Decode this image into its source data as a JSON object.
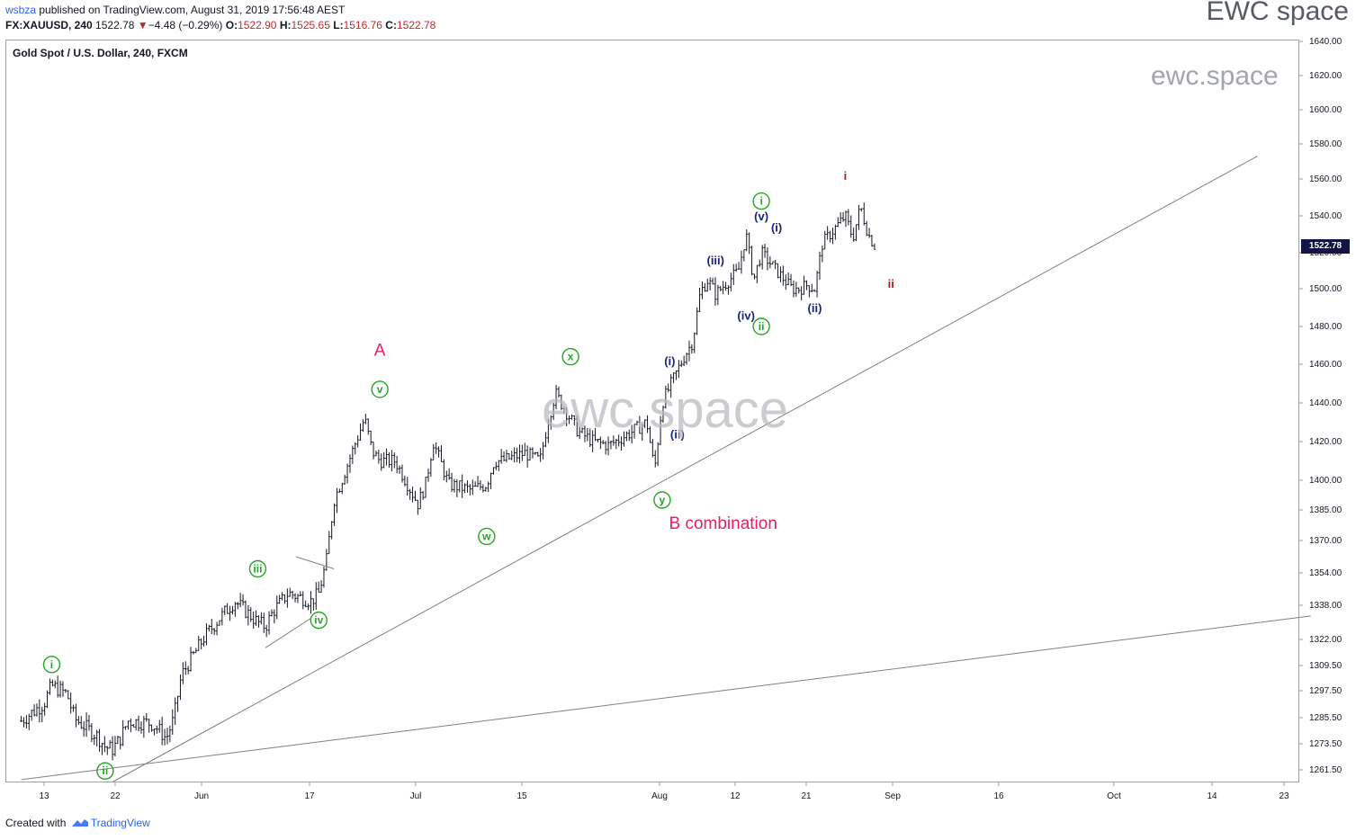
{
  "header": {
    "user": "wsbza",
    "published": "published on TradingView.com, August 31, 2019 17:56:48 AEST",
    "symbol": "FX:XAUUSD, 240",
    "last": "1522.78",
    "change": "−4.48 (−0.29%)",
    "o_label": "O:",
    "o_value": "1522.90",
    "h_label": "H:",
    "h_value": "1525.65",
    "l_label": "L:",
    "l_value": "1516.76",
    "c_label": "C:",
    "c_value": "1522.78"
  },
  "brand": "EWC space",
  "watermark_top": "ewc.space",
  "watermark_center": "ewc.space",
  "instrument": "Gold Spot / U.S. Dollar, 240, FXCM",
  "footer": {
    "created": "Created with",
    "tradingview": "TradingView"
  },
  "colors": {
    "green": "#22a722",
    "blue": "#1a237e",
    "red": "#e91e63",
    "darkred": "#b71c1c",
    "bar": "#131722",
    "trend": "#808080",
    "pricebox": "#131345"
  },
  "chart_data": {
    "type": "ohlc-bar",
    "title": "Gold Spot / U.S. Dollar, 240, FXCM",
    "last_price": "1522.78",
    "y_ticks": [
      "1640.00",
      "1620.00",
      "1600.00",
      "1580.00",
      "1560.00",
      "1540.00",
      "1520.00",
      "1500.00",
      "1480.00",
      "1460.00",
      "1440.00",
      "1420.00",
      "1400.00",
      "1385.00",
      "1370.00",
      "1354.00",
      "1338.00",
      "1322.00",
      "1309.50",
      "1297.50",
      "1285.50",
      "1273.50",
      "1261.50"
    ],
    "x_ticks": [
      "13",
      "22",
      "Jun",
      "17",
      "Jul",
      "15",
      "Aug",
      "12",
      "21",
      "Sep",
      "16",
      "Oct",
      "14",
      "23"
    ],
    "path": [
      [
        "2019-05-10",
        1284
      ],
      [
        "2019-05-13",
        1292
      ],
      [
        "2019-05-14",
        1300
      ],
      [
        "2019-05-16",
        1296
      ],
      [
        "2019-05-17",
        1285
      ],
      [
        "2019-05-20",
        1277
      ],
      [
        "2019-05-21",
        1272
      ],
      [
        "2019-05-22",
        1271
      ],
      [
        "2019-05-23",
        1276
      ],
      [
        "2019-05-24",
        1284
      ],
      [
        "2019-05-27",
        1283
      ],
      [
        "2019-05-28",
        1280
      ],
      [
        "2019-05-29",
        1276
      ],
      [
        "2019-05-30",
        1285
      ],
      [
        "2019-05-31",
        1305
      ],
      [
        "2019-06-03",
        1323
      ],
      [
        "2019-06-05",
        1332
      ],
      [
        "2019-06-07",
        1340
      ],
      [
        "2019-06-10",
        1330
      ],
      [
        "2019-06-11",
        1328
      ],
      [
        "2019-06-12",
        1335
      ],
      [
        "2019-06-14",
        1344
      ],
      [
        "2019-06-17",
        1340
      ],
      [
        "2019-06-18",
        1344
      ],
      [
        "2019-06-19",
        1360
      ],
      [
        "2019-06-20",
        1390
      ],
      [
        "2019-06-21",
        1400
      ],
      [
        "2019-06-24",
        1432
      ],
      [
        "2019-06-25",
        1415
      ],
      [
        "2019-06-26",
        1410
      ],
      [
        "2019-06-28",
        1410
      ],
      [
        "2019-07-01",
        1388
      ],
      [
        "2019-07-02",
        1398
      ],
      [
        "2019-07-03",
        1420
      ],
      [
        "2019-07-05",
        1398
      ],
      [
        "2019-07-08",
        1395
      ],
      [
        "2019-07-10",
        1398
      ],
      [
        "2019-07-11",
        1410
      ],
      [
        "2019-07-12",
        1410
      ],
      [
        "2019-07-15",
        1414
      ],
      [
        "2019-07-17",
        1410
      ],
      [
        "2019-07-18",
        1430
      ],
      [
        "2019-07-19",
        1445
      ],
      [
        "2019-07-22",
        1425
      ],
      [
        "2019-07-24",
        1420
      ],
      [
        "2019-07-26",
        1418
      ],
      [
        "2019-07-29",
        1425
      ],
      [
        "2019-07-31",
        1430
      ],
      [
        "2019-08-01",
        1405
      ],
      [
        "2019-08-02",
        1440
      ],
      [
        "2019-08-05",
        1465
      ],
      [
        "2019-08-06",
        1472
      ],
      [
        "2019-08-07",
        1498
      ],
      [
        "2019-08-08",
        1505
      ],
      [
        "2019-08-09",
        1497
      ],
      [
        "2019-08-12",
        1510
      ],
      [
        "2019-08-13",
        1530
      ],
      [
        "2019-08-14",
        1505
      ],
      [
        "2019-08-15",
        1520
      ],
      [
        "2019-08-16",
        1515
      ],
      [
        "2019-08-19",
        1500
      ],
      [
        "2019-08-20",
        1500
      ],
      [
        "2019-08-21",
        1502
      ],
      [
        "2019-08-22",
        1500
      ],
      [
        "2019-08-23",
        1525
      ],
      [
        "2019-08-26",
        1540
      ],
      [
        "2019-08-27",
        1528
      ],
      [
        "2019-08-28",
        1545
      ],
      [
        "2019-08-29",
        1530
      ],
      [
        "2019-08-30",
        1522.78
      ]
    ],
    "annotations": [
      {
        "text": "i",
        "circled": true,
        "color": "green",
        "date": "2019-05-14",
        "price": 1310
      },
      {
        "text": "ii",
        "circled": true,
        "color": "green",
        "date": "2019-05-21",
        "price": 1261
      },
      {
        "text": "iii",
        "circled": true,
        "color": "green",
        "date": "2019-06-10",
        "price": 1356
      },
      {
        "text": "iv",
        "circled": true,
        "color": "green",
        "date": "2019-06-18",
        "price": 1331
      },
      {
        "text": "v",
        "circled": true,
        "color": "green",
        "date": "2019-06-26",
        "price": 1447
      },
      {
        "text": "A",
        "circled": false,
        "color": "red",
        "date": "2019-06-26",
        "price": 1467
      },
      {
        "text": "w",
        "circled": true,
        "color": "green",
        "date": "2019-07-10",
        "price": 1372
      },
      {
        "text": "x",
        "circled": true,
        "color": "green",
        "date": "2019-07-21",
        "price": 1464
      },
      {
        "text": "y",
        "circled": true,
        "color": "green",
        "date": "2019-08-02",
        "price": 1390
      },
      {
        "text": "B combination",
        "circled": false,
        "color": "red",
        "date": "2019-08-10",
        "price": 1378
      },
      {
        "text": "(i)",
        "circled": false,
        "color": "blue",
        "date": "2019-08-03",
        "price": 1462
      },
      {
        "text": "(ii)",
        "circled": false,
        "color": "blue",
        "date": "2019-08-04",
        "price": 1424
      },
      {
        "text": "(iii)",
        "circled": false,
        "color": "blue",
        "date": "2019-08-09",
        "price": 1516
      },
      {
        "text": "(iv)",
        "circled": false,
        "color": "blue",
        "date": "2019-08-13",
        "price": 1486
      },
      {
        "text": "(v)",
        "circled": false,
        "color": "blue",
        "date": "2019-08-15",
        "price": 1540
      },
      {
        "text": "i",
        "circled": true,
        "color": "green",
        "date": "2019-08-15",
        "price": 1548
      },
      {
        "text": "ii",
        "circled": true,
        "color": "green",
        "date": "2019-08-15",
        "price": 1480
      },
      {
        "text": "(i)",
        "circled": false,
        "color": "blue",
        "date": "2019-08-17",
        "price": 1534
      },
      {
        "text": "(ii)",
        "circled": false,
        "color": "blue",
        "date": "2019-08-22",
        "price": 1490
      },
      {
        "text": "i",
        "circled": false,
        "color": "darkred",
        "date": "2019-08-26",
        "price": 1562
      },
      {
        "text": "ii",
        "circled": false,
        "color": "darkred",
        "date": "2019-09-01",
        "price": 1503
      }
    ],
    "trendlines": [
      {
        "from": [
          "2019-05-22",
          1256
        ],
        "to": [
          "2019-10-19",
          1573
        ]
      },
      {
        "from": [
          "2019-05-10",
          1257
        ],
        "to": [
          "2019-10-26",
          1333
        ]
      },
      {
        "from": [
          "2019-06-15",
          1362
        ],
        "to": [
          "2019-06-20",
          1356
        ]
      },
      {
        "from": [
          "2019-06-11",
          1318
        ],
        "to": [
          "2019-06-17",
          1332
        ]
      }
    ],
    "legend": "none",
    "grid": false
  }
}
